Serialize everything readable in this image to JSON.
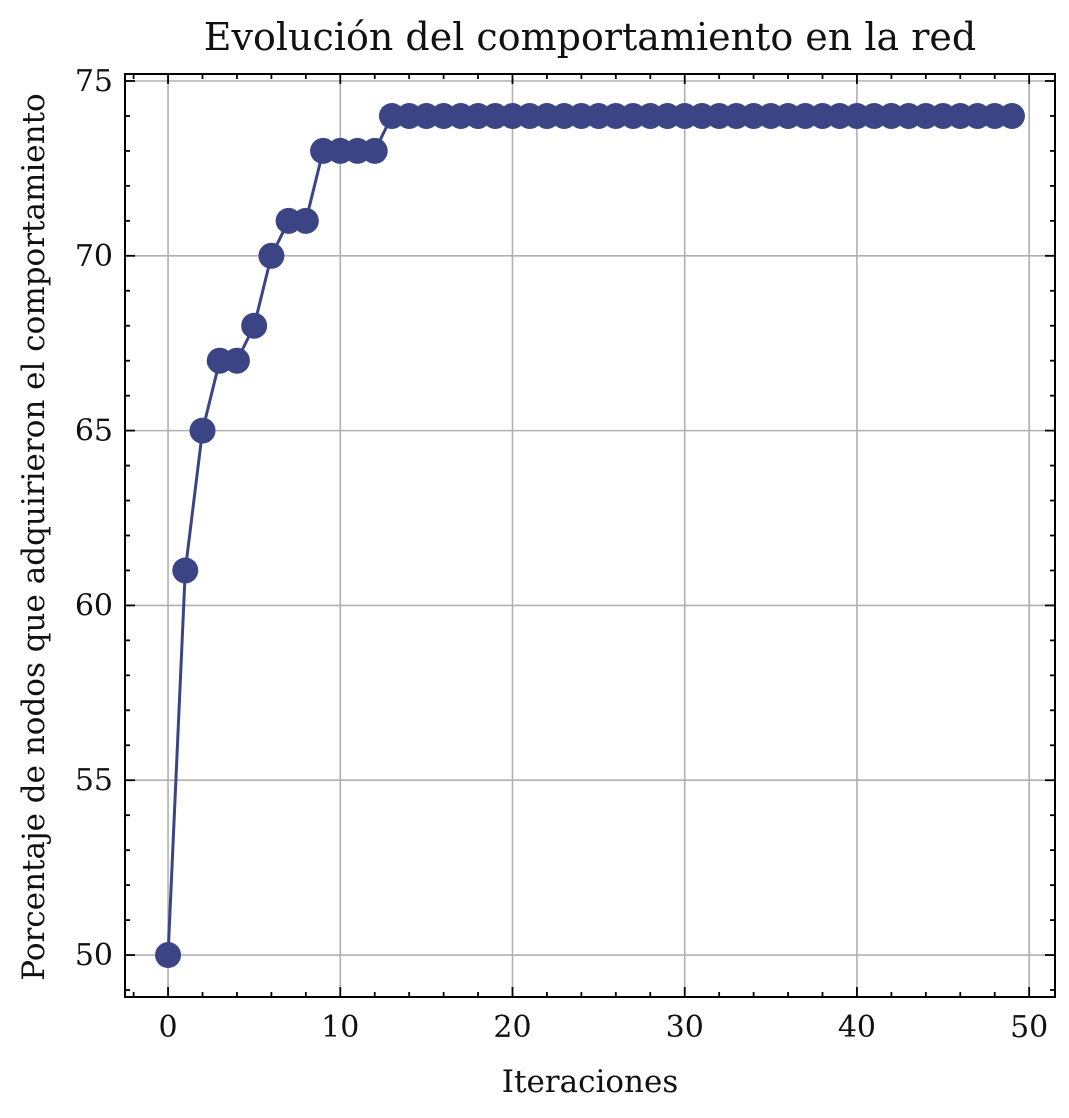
{
  "chart_data": {
    "type": "line",
    "title": "Evolución del comportamiento en la red",
    "xlabel": "Iteraciones",
    "ylabel": "Porcentaje de nodos que adquirieron el comportamiento",
    "xlim": [
      -2.5,
      51.5
    ],
    "ylim": [
      48.8,
      75.2
    ],
    "x_ticks": [
      0,
      10,
      20,
      30,
      40,
      50
    ],
    "y_ticks": [
      50,
      55,
      60,
      65,
      70,
      75
    ],
    "x_minor_step": 2,
    "y_minor_step": 1,
    "grid": true,
    "line_color": "#3b4485",
    "marker": "circle",
    "series": [
      {
        "x": [
          0,
          1,
          2,
          3,
          4,
          5,
          6,
          7,
          8,
          9,
          10,
          11,
          12,
          13,
          14,
          15,
          16,
          17,
          18,
          19,
          20,
          21,
          22,
          23,
          24,
          25,
          26,
          27,
          28,
          29,
          30,
          31,
          32,
          33,
          34,
          35,
          36,
          37,
          38,
          39,
          40,
          41,
          42,
          43,
          44,
          45,
          46,
          47,
          48,
          49
        ],
        "values": [
          50,
          61,
          65,
          67,
          67,
          68,
          70,
          71,
          71,
          73,
          73,
          73,
          73,
          74,
          74,
          74,
          74,
          74,
          74,
          74,
          74,
          74,
          74,
          74,
          74,
          74,
          74,
          74,
          74,
          74,
          74,
          74,
          74,
          74,
          74,
          74,
          74,
          74,
          74,
          74,
          74,
          74,
          74,
          74,
          74,
          74,
          74,
          74,
          74,
          74
        ]
      }
    ]
  }
}
